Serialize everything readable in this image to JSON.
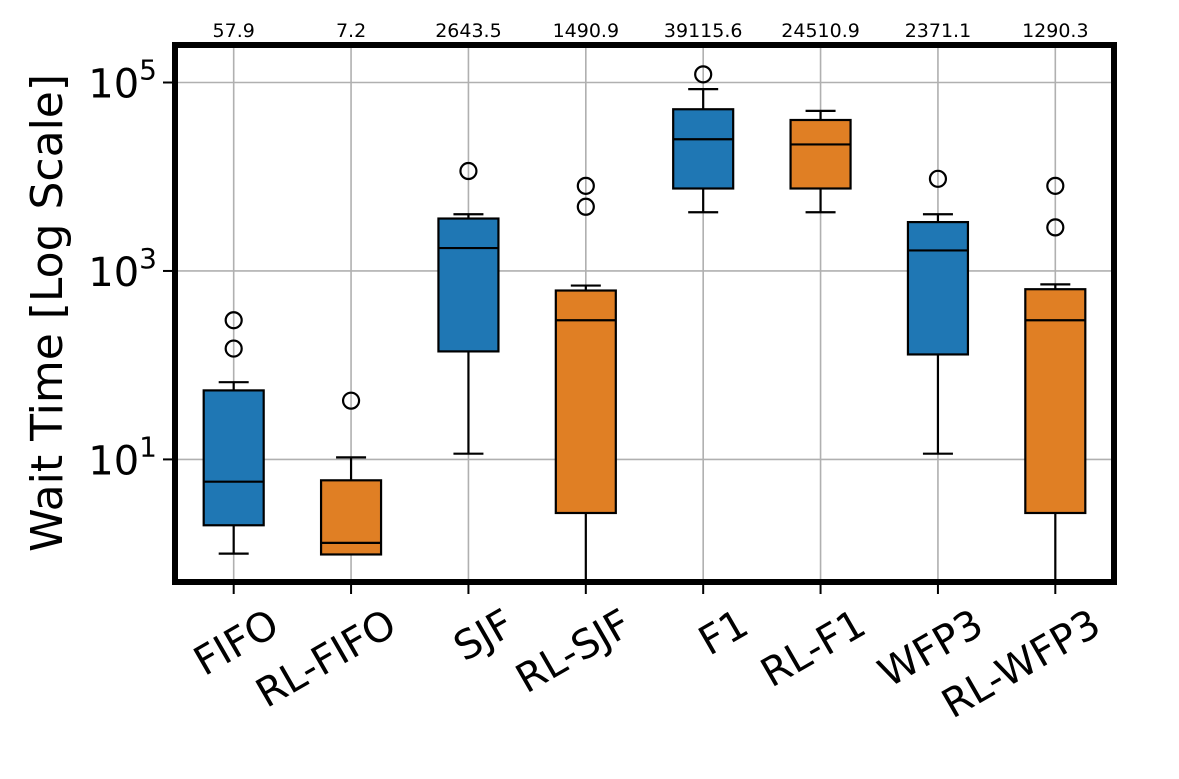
{
  "chart_data": {
    "type": "box",
    "ylabel": "Wait Time [Log Scale]",
    "yscale": "log",
    "ylim": [
      0.5,
      250000
    ],
    "ytick_base": "10",
    "yticks": [
      {
        "value": 10,
        "exp": "1"
      },
      {
        "value": 1000,
        "exp": "3"
      },
      {
        "value": 100000,
        "exp": "5"
      }
    ],
    "colors": {
      "baseline": "#1f77b4",
      "rl": "#e07f24"
    },
    "categories": [
      "FIFO",
      "RL-FIFO",
      "SJF",
      "RL-SJF",
      "F1",
      "RL-F1",
      "WFP3",
      "RL-WFP3"
    ],
    "mean_labels": [
      "57.9",
      "7.2",
      "2643.5",
      "1490.9",
      "39115.6",
      "24510.9",
      "2371.1",
      "1290.3"
    ],
    "boxes": [
      {
        "name": "FIFO",
        "group": "baseline",
        "whislo": 1.0,
        "q1": 2.0,
        "med": 5.8,
        "q3": 54,
        "whishi": 66,
        "fliers": [
          150,
          300
        ]
      },
      {
        "name": "RL-FIFO",
        "group": "rl",
        "whislo": 0.98,
        "q1": 0.98,
        "med": 1.3,
        "q3": 6.0,
        "whishi": 10.5,
        "fliers": [
          42
        ]
      },
      {
        "name": "SJF",
        "group": "baseline",
        "whislo": 11.5,
        "q1": 140,
        "med": 1750,
        "q3": 3600,
        "whishi": 4000,
        "fliers": [
          11500
        ]
      },
      {
        "name": "RL-SJF",
        "group": "rl",
        "whislo": 0.45,
        "q1": 2.7,
        "med": 300,
        "q3": 620,
        "whishi": 700,
        "fliers": [
          4800,
          8000
        ]
      },
      {
        "name": "F1",
        "group": "baseline",
        "whislo": 4200,
        "q1": 7500,
        "med": 25000,
        "q3": 52000,
        "whishi": 85000,
        "fliers": [
          122000
        ]
      },
      {
        "name": "RL-F1",
        "group": "rl",
        "whislo": 4200,
        "q1": 7500,
        "med": 22000,
        "q3": 40000,
        "whishi": 50000,
        "fliers": []
      },
      {
        "name": "WFP3",
        "group": "baseline",
        "whislo": 11.5,
        "q1": 130,
        "med": 1650,
        "q3": 3300,
        "whishi": 4000,
        "fliers": [
          9500
        ]
      },
      {
        "name": "RL-WFP3",
        "group": "rl",
        "whislo": 0.45,
        "q1": 2.7,
        "med": 300,
        "q3": 640,
        "whishi": 720,
        "fliers": [
          2900,
          8000
        ]
      }
    ]
  }
}
